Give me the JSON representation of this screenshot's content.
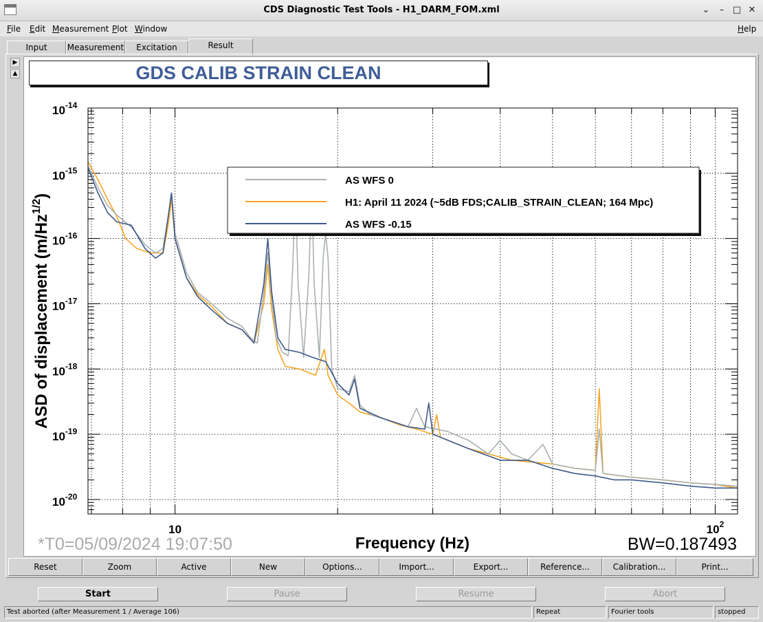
{
  "window": {
    "title": "CDS Diagnostic Test Tools - H1_DARM_FOM.xml"
  },
  "menu": [
    "File",
    "Edit",
    "Measurement",
    "Plot",
    "Window"
  ],
  "menu_help": "Help",
  "tabs": [
    "Input",
    "Measurement",
    "Excitation",
    "Result"
  ],
  "active_tab": "Result",
  "plot": {
    "title": "GDS CALIB STRAIN CLEAN",
    "t0_label": "*T0=05/09/2024 19:07:50",
    "bw_label": "BW=0.187493"
  },
  "chart_data": {
    "type": "line",
    "title": "GDS CALIB STRAIN CLEAN",
    "xlabel": "Frequency (Hz)",
    "ylabel": "ASD of displacement (m/Hz^1/2)",
    "x_scale": "log",
    "y_scale": "log",
    "xlim": [
      6.9,
      110
    ],
    "ylim": [
      6e-21,
      1e-14
    ],
    "x_tick_labels": [
      "10",
      "10^2"
    ],
    "y_tick_labels": [
      "10^-14",
      "10^-15",
      "10^-16",
      "10^-17",
      "10^-18",
      "10^-19",
      "10^-20"
    ],
    "grid": true,
    "legend_position": "top-right",
    "colors": {
      "gray": "#a9b0b0",
      "orange": "#f5a623",
      "blue": "#3d5a8a"
    },
    "series": [
      {
        "name": "AS WFS 0",
        "color": "#a9b0b0",
        "points": [
          [
            6.9,
            1.3e-15
          ],
          [
            7.2,
            6e-16
          ],
          [
            7.5,
            3.2e-16
          ],
          [
            7.8,
            2.3e-16
          ],
          [
            8.3,
            1.5e-16
          ],
          [
            8.8,
            8e-17
          ],
          [
            9.2,
            6e-17
          ],
          [
            9.5,
            7e-17
          ],
          [
            9.7,
            2e-16
          ],
          [
            9.85,
            5e-16
          ],
          [
            10.0,
            1.2e-16
          ],
          [
            10.5,
            3e-17
          ],
          [
            11,
            1.5e-17
          ],
          [
            11.7,
            1e-17
          ],
          [
            12.5,
            6e-18
          ],
          [
            13.3,
            4.5e-18
          ],
          [
            13.8,
            3e-18
          ],
          [
            14.2,
            2.5e-18
          ],
          [
            14.6,
            1.5e-17
          ],
          [
            14.85,
            6e-17
          ],
          [
            15.1,
            1.2e-17
          ],
          [
            15.4,
            3e-18
          ],
          [
            15.8,
            1.8e-18
          ],
          [
            16.2,
            1.6e-18
          ],
          [
            16.5,
            3e-17
          ],
          [
            16.7,
            5e-16
          ],
          [
            16.9,
            2e-17
          ],
          [
            17.3,
            1.5e-18
          ],
          [
            17.7,
            3e-17
          ],
          [
            17.9,
            6e-16
          ],
          [
            18.1,
            2e-17
          ],
          [
            18.5,
            1.5e-18
          ],
          [
            18.8,
            5e-17
          ],
          [
            19.0,
            1.2e-16
          ],
          [
            19.2,
            5e-17
          ],
          [
            19.5,
            1e-18
          ],
          [
            20,
            5e-19
          ],
          [
            21,
            4.5e-19
          ],
          [
            21.5,
            8e-19
          ],
          [
            22,
            2.8e-19
          ],
          [
            23,
            2e-19
          ],
          [
            25,
            1.6e-19
          ],
          [
            27,
            1.3e-19
          ],
          [
            28,
            2.5e-19
          ],
          [
            29,
            1.3e-19
          ],
          [
            32,
            1.1e-19
          ],
          [
            35,
            8e-20
          ],
          [
            38,
            5e-20
          ],
          [
            40,
            8e-20
          ],
          [
            42,
            5e-20
          ],
          [
            45,
            4e-20
          ],
          [
            48,
            7e-20
          ],
          [
            50,
            3.5e-20
          ],
          [
            55,
            3e-20
          ],
          [
            60,
            2.8e-20
          ],
          [
            61,
            1.2e-19
          ],
          [
            62,
            2.5e-20
          ],
          [
            70,
            2.2e-20
          ],
          [
            80,
            2e-20
          ],
          [
            90,
            1.8e-20
          ],
          [
            100,
            1.7e-20
          ],
          [
            110,
            1.6e-20
          ]
        ]
      },
      {
        "name": "H1: April 11 2024 (~5dB FDS;CALIB_STRAIN_CLEAN; 164 Mpc)",
        "color": "#f5a623",
        "points": [
          [
            6.9,
            1.5e-15
          ],
          [
            7.2,
            8e-16
          ],
          [
            7.5,
            4e-16
          ],
          [
            7.8,
            2.2e-16
          ],
          [
            8.1,
            1e-16
          ],
          [
            8.5,
            7e-17
          ],
          [
            9.0,
            6e-17
          ],
          [
            9.5,
            6e-17
          ],
          [
            9.7,
            1.5e-16
          ],
          [
            9.85,
            4e-16
          ],
          [
            10.0,
            1e-16
          ],
          [
            10.5,
            2.5e-17
          ],
          [
            11,
            1.4e-17
          ],
          [
            11.7,
            9e-18
          ],
          [
            12.5,
            5e-18
          ],
          [
            13.3,
            4e-18
          ],
          [
            14.0,
            2.5e-18
          ],
          [
            14.6,
            1e-17
          ],
          [
            14.85,
            4e-17
          ],
          [
            15.1,
            8e-18
          ],
          [
            15.5,
            2e-18
          ],
          [
            16,
            1.1e-18
          ],
          [
            17,
            1e-18
          ],
          [
            18.2,
            8e-19
          ],
          [
            18.9,
            2e-18
          ],
          [
            19.2,
            8e-19
          ],
          [
            20,
            4e-19
          ],
          [
            21,
            3e-19
          ],
          [
            22,
            2.2e-19
          ],
          [
            24,
            1.8e-19
          ],
          [
            26,
            1.4e-19
          ],
          [
            28,
            1.2e-19
          ],
          [
            30,
            1e-19
          ],
          [
            30.5,
            2e-19
          ],
          [
            31,
            9e-20
          ],
          [
            35,
            6e-20
          ],
          [
            38,
            5e-20
          ],
          [
            42,
            4e-20
          ],
          [
            50,
            3.5e-20
          ],
          [
            55,
            3e-20
          ],
          [
            60,
            2.8e-20
          ],
          [
            61,
            5e-19
          ],
          [
            62,
            2.5e-20
          ],
          [
            70,
            2.2e-20
          ],
          [
            80,
            2e-20
          ],
          [
            90,
            1.8e-20
          ],
          [
            100,
            1.7e-20
          ],
          [
            110,
            1.5e-20
          ]
        ]
      },
      {
        "name": "AS WFS -0.15",
        "color": "#3d5a8a",
        "points": [
          [
            6.9,
            1.2e-15
          ],
          [
            7.2,
            5e-16
          ],
          [
            7.5,
            2.5e-16
          ],
          [
            7.8,
            1.8e-16
          ],
          [
            8.3,
            1.6e-16
          ],
          [
            8.8,
            7e-17
          ],
          [
            9.2,
            5e-17
          ],
          [
            9.5,
            6e-17
          ],
          [
            9.7,
            2e-16
          ],
          [
            9.85,
            5e-16
          ],
          [
            10.0,
            1e-16
          ],
          [
            10.5,
            2.5e-17
          ],
          [
            11,
            1.3e-17
          ],
          [
            11.7,
            8e-18
          ],
          [
            12.5,
            5e-18
          ],
          [
            13.3,
            4e-18
          ],
          [
            14.0,
            2.5e-18
          ],
          [
            14.6,
            2e-17
          ],
          [
            14.85,
            1e-16
          ],
          [
            15.1,
            1.5e-17
          ],
          [
            15.5,
            3e-18
          ],
          [
            16,
            2e-18
          ],
          [
            17,
            1.8e-18
          ],
          [
            18,
            1.5e-18
          ],
          [
            19,
            1.3e-18
          ],
          [
            20,
            6e-19
          ],
          [
            21,
            4e-19
          ],
          [
            21.5,
            7e-19
          ],
          [
            22,
            2.5e-19
          ],
          [
            24,
            1.8e-19
          ],
          [
            27,
            1.3e-19
          ],
          [
            29,
            1.2e-19
          ],
          [
            29.5,
            3e-19
          ],
          [
            30,
            1e-19
          ],
          [
            35,
            6e-20
          ],
          [
            40,
            4e-20
          ],
          [
            45,
            4e-20
          ],
          [
            50,
            3e-20
          ],
          [
            55,
            2.5e-20
          ],
          [
            60,
            2.3e-20
          ],
          [
            65,
            2e-20
          ],
          [
            70,
            2e-20
          ],
          [
            80,
            1.8e-20
          ],
          [
            90,
            1.6e-20
          ],
          [
            100,
            1.5e-20
          ],
          [
            110,
            1.5e-20
          ]
        ]
      }
    ]
  },
  "plot_buttons": [
    "Reset",
    "Zoom",
    "Active",
    "New",
    "Options...",
    "Import...",
    "Export...",
    "Reference...",
    "Calibration...",
    "Print..."
  ],
  "control_buttons": {
    "start": "Start",
    "pause": "Pause",
    "resume": "Resume",
    "abort": "Abort"
  },
  "status": {
    "message": "Test aborted (after Measurement 1 / Average 106)",
    "mode": "Repeat",
    "tool": "Fourier tools",
    "state": "stopped"
  }
}
